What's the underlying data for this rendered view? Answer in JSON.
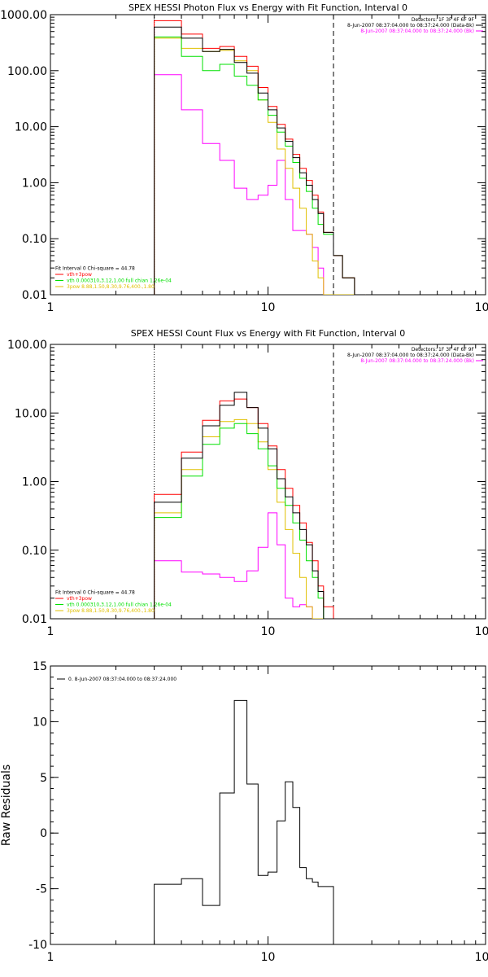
{
  "colors": {
    "data": "#000000",
    "total": "#ff0000",
    "vth": "#00e000",
    "pow": "#e0c000",
    "bk": "#ff00ff"
  },
  "chart_data": [
    {
      "id": "photon",
      "type": "line",
      "title": "SPEX HESSI Photon Flux vs Energy with Fit Function, Interval 0",
      "xlabel": "",
      "ylabel": "",
      "xscale": "log",
      "yscale": "log",
      "xlim": [
        1,
        100
      ],
      "ylim": [
        0.01,
        1000
      ],
      "xticks": [
        {
          "v": 1,
          "label": "1"
        },
        {
          "v": 10,
          "label": "10"
        },
        {
          "v": 100,
          "label": "100"
        }
      ],
      "yticks": [
        {
          "v": 0.01,
          "label": "0.01"
        },
        {
          "v": 0.1,
          "label": "0.10"
        },
        {
          "v": 1,
          "label": "1.00"
        },
        {
          "v": 10,
          "label": "10.00"
        },
        {
          "v": 100,
          "label": "100.00"
        },
        {
          "v": 1000,
          "label": "1000.00"
        }
      ],
      "vlines": [
        {
          "x": 3.0,
          "style": "dotted"
        },
        {
          "x": 20.0,
          "style": "dashed"
        }
      ],
      "edges": [
        3,
        4,
        5,
        6,
        7,
        8,
        9,
        10,
        11,
        12,
        13,
        14,
        15,
        16,
        17,
        18,
        20,
        22,
        25,
        28
      ],
      "series": [
        {
          "name": "",
          "color": "data",
          "values": [
            600,
            380,
            220,
            240,
            140,
            90,
            40,
            20,
            9.5,
            5.5,
            2.8,
            1.5,
            0.9,
            0.5,
            0.28,
            0.13,
            0.05,
            0.02,
            0.01
          ]
        },
        {
          "name": "vth+3pow",
          "color": "total",
          "values": [
            780,
            450,
            250,
            270,
            180,
            120,
            50,
            23,
            11,
            6,
            3.2,
            1.8,
            1.1,
            0.6,
            0.3,
            0.13,
            0.05,
            0.02,
            0.01
          ]
        },
        {
          "name": "vth 0.000310,3.12,1.00  full chian 1.26e-04",
          "color": "vth",
          "values": [
            400,
            180,
            100,
            130,
            80,
            55,
            30,
            16,
            8,
            4.5,
            2.3,
            1.2,
            0.7,
            0.35,
            0.18,
            0.12,
            0.05,
            0.02,
            0.01
          ]
        },
        {
          "name": "3pow 8.88,1.50,8.30,9.76,400.,1.80",
          "color": "pow",
          "values": [
            380,
            250,
            220,
            230,
            150,
            100,
            30,
            12,
            4,
            1.8,
            0.8,
            0.35,
            0.12,
            0.04,
            0.02,
            0.01,
            0.01,
            0.01,
            0.01
          ]
        },
        {
          "name": "",
          "color": "bk",
          "values": [
            85,
            20,
            5,
            2.5,
            0.8,
            0.5,
            0.6,
            0.9,
            2.5,
            0.5,
            0.14,
            0.14,
            0.12,
            0.07,
            0.03,
            0.01,
            0.01,
            0.01,
            0.01
          ]
        }
      ],
      "header_lines": [
        {
          "text": "Detectors: 1F 3F 4F 6F 9F",
          "color": "data"
        },
        {
          "text": "8-Jun-2007 08:37:04.000 to 08:37:24.000 (Data-Bk)",
          "color": "data"
        },
        {
          "text": "8-Jun-2007 08:37:04.000 to 08:37:24.000 (Bk)",
          "color": "bk"
        }
      ],
      "legend_lines": [
        {
          "text": "Fit Interval 0   Chi-square = 44.78",
          "color": "data"
        },
        {
          "text": "vth+3pow",
          "color": "total"
        },
        {
          "text": "vth 0.000310,3.12,1.00  full chian 1.26e-04",
          "color": "vth"
        },
        {
          "text": "3pow 8.88,1.50,8.30,9.76,400.,1.80",
          "color": "pow"
        }
      ]
    },
    {
      "id": "count",
      "type": "line",
      "title": "SPEX HESSI Count Flux vs Energy with Fit Function, Interval 0",
      "xlabel": "",
      "ylabel": "",
      "xscale": "log",
      "yscale": "log",
      "xlim": [
        1,
        100
      ],
      "ylim": [
        0.01,
        100
      ],
      "xticks": [
        {
          "v": 1,
          "label": "1"
        },
        {
          "v": 10,
          "label": "10"
        },
        {
          "v": 100,
          "label": "100"
        }
      ],
      "yticks": [
        {
          "v": 0.01,
          "label": "0.01"
        },
        {
          "v": 0.1,
          "label": "0.10"
        },
        {
          "v": 1,
          "label": "1.00"
        },
        {
          "v": 10,
          "label": "10.00"
        },
        {
          "v": 100,
          "label": "100.00"
        }
      ],
      "vlines": [
        {
          "x": 3.0,
          "style": "dotted"
        },
        {
          "x": 20.0,
          "style": "dashed"
        }
      ],
      "edges": [
        3,
        4,
        5,
        6,
        7,
        8,
        9,
        10,
        11,
        12,
        13,
        14,
        15,
        16,
        17,
        18,
        20,
        22,
        25
      ],
      "series": [
        {
          "name": "",
          "color": "data",
          "values": [
            0.5,
            2.2,
            6.5,
            13,
            20,
            12,
            6,
            3,
            1.1,
            0.6,
            0.35,
            0.2,
            0.12,
            0.05,
            0.025,
            0.01,
            0.01,
            0.01
          ]
        },
        {
          "name": "vth+3pow",
          "color": "total",
          "values": [
            0.65,
            2.7,
            7.8,
            15,
            16,
            12,
            7,
            3.3,
            1.5,
            0.8,
            0.45,
            0.25,
            0.13,
            0.07,
            0.03,
            0.015,
            0.01,
            0.01
          ]
        },
        {
          "name": "vth 0.000310,3.12,1.00  full chian 1.26e-04",
          "color": "vth",
          "values": [
            0.3,
            1.2,
            3.5,
            6,
            7,
            5,
            3,
            1.7,
            0.8,
            0.45,
            0.25,
            0.14,
            0.07,
            0.04,
            0.02,
            0.01,
            0.01,
            0.01
          ]
        },
        {
          "name": "3pow 8.88,1.50,8.30,9.76,400.,1.80",
          "color": "pow",
          "values": [
            0.35,
            1.5,
            4.5,
            7.5,
            8,
            7,
            3.8,
            1.5,
            0.5,
            0.2,
            0.09,
            0.04,
            0.015,
            0.01,
            0.01,
            0.01,
            0.01,
            0.01
          ]
        },
        {
          "name": "",
          "color": "bk",
          "values": [
            0.07,
            0.048,
            0.045,
            0.04,
            0.035,
            0.05,
            0.11,
            0.35,
            0.12,
            0.02,
            0.015,
            0.016,
            0.015,
            0.01,
            0.01,
            0.01,
            0.01,
            0.01
          ]
        }
      ],
      "header_lines": [
        {
          "text": "Detectors: 1F 3F 4F 6F 9F",
          "color": "data"
        },
        {
          "text": "8-Jun-2007 08:37:04.000 to 08:37:24.000 (Data-Bk)",
          "color": "data"
        },
        {
          "text": "8-Jun-2007 08:37:04.000 to 08:37:24.000 (Bk)",
          "color": "bk"
        }
      ],
      "legend_lines": [
        {
          "text": "Fit Interval 0   Chi-square = 44.78",
          "color": "data"
        },
        {
          "text": "vth+3pow",
          "color": "total"
        },
        {
          "text": "vth 0.000310,3.12,1.00  full chian 1.26e-04",
          "color": "vth"
        },
        {
          "text": "3pow 8.88,1.50,8.30,9.76,400.,1.80",
          "color": "pow"
        }
      ]
    },
    {
      "id": "resid",
      "type": "line",
      "title": "",
      "xlabel": "",
      "ylabel": "Raw Residuals",
      "xscale": "log",
      "yscale": "linear",
      "xlim": [
        1,
        100
      ],
      "ylim": [
        -10,
        15
      ],
      "xticks": [
        {
          "v": 1,
          "label": "1"
        },
        {
          "v": 10,
          "label": "10"
        },
        {
          "v": 100,
          "label": "100"
        }
      ],
      "yticks": [
        {
          "v": -10,
          "label": "-10"
        },
        {
          "v": -5,
          "label": "-5"
        },
        {
          "v": 0,
          "label": "0"
        },
        {
          "v": 5,
          "label": "5"
        },
        {
          "v": 10,
          "label": "10"
        },
        {
          "v": 15,
          "label": "15"
        }
      ],
      "vlines": [],
      "edges": [
        3,
        4,
        5,
        6,
        7,
        8,
        9,
        10,
        11,
        12,
        13,
        14,
        15,
        16,
        17,
        18,
        20
      ],
      "series": [
        {
          "name": "0. 8-Jun-2007 08:37:04.000 to 08:37:24.000",
          "color": "data",
          "values": [
            -4.6,
            -4.1,
            -6.5,
            3.6,
            11.9,
            4.4,
            -3.8,
            -3.5,
            1.1,
            4.6,
            2.3,
            -3.1,
            -4.1,
            -4.4,
            -4.8,
            -4.8
          ]
        }
      ],
      "header_lines": [],
      "legend_lines": [
        {
          "text": "0. 8-Jun-2007 08:37:04.000 to 08:37:24.000",
          "color": "data"
        }
      ]
    }
  ]
}
